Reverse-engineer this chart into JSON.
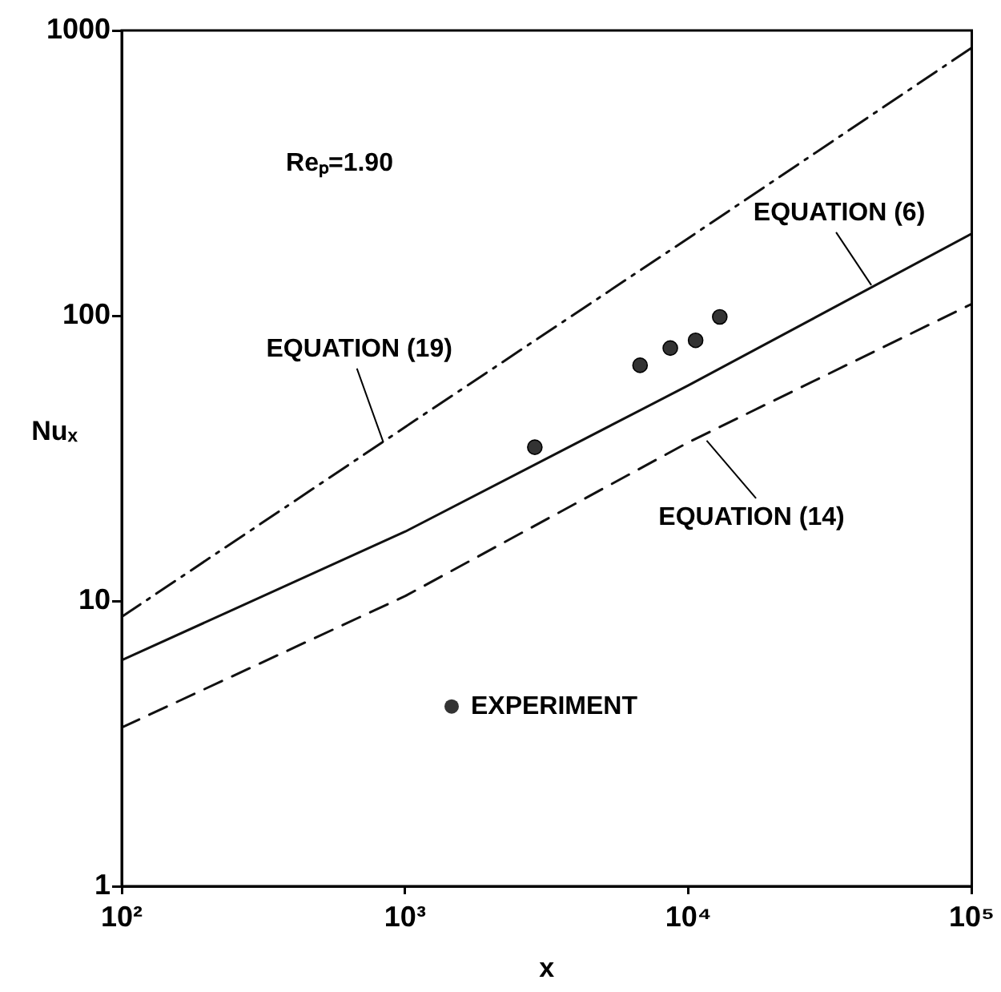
{
  "chart_data": {
    "type": "line",
    "xlabel": "x",
    "ylabel": "Nuₓ",
    "log": "xy",
    "xlim": [
      100,
      100000
    ],
    "ylim": [
      1,
      1000
    ],
    "xticks": [
      {
        "value": 100,
        "label": "10²"
      },
      {
        "value": 1000,
        "label": "10³"
      },
      {
        "value": 10000,
        "label": "10⁴"
      },
      {
        "value": 100000,
        "label": "10⁵"
      }
    ],
    "yticks": [
      1,
      10,
      100,
      1000
    ],
    "grid": false,
    "legend": "bottom",
    "series": [
      {
        "color": "#111111",
        "line_style": "dashdot",
        "marker": "none",
        "x": [
          100,
          1000,
          10000,
          100000
        ],
        "values": [
          8.8,
          40.7,
          187,
          870
        ]
      },
      {
        "color": "#111111",
        "line_style": "solid",
        "marker": "none",
        "x": [
          100,
          1000,
          10000,
          100000
        ],
        "values": [
          6.2,
          17.5,
          57,
          194
        ]
      },
      {
        "color": "#111111",
        "line_style": "dashed",
        "marker": "none",
        "x": [
          100,
          1000,
          10000,
          100000
        ],
        "values": [
          3.6,
          10.4,
          36,
          110
        ]
      },
      {
        "type": "scatter",
        "name": "EXPERIMENT",
        "color": "#333333",
        "marker": "circle",
        "x": [
          2870,
          6750,
          8630,
          10600,
          12900
        ],
        "values": [
          34.6,
          67,
          77,
          82,
          99
        ]
      }
    ],
    "annotations": [
      "Reₚ=1.90",
      {
        "text": "EQUATION (19)",
        "x": 838,
        "y": 36
      },
      {
        "text": "EQUATION (6)",
        "x": 44200,
        "y": 128
      },
      {
        "text": "EQUATION (14)",
        "x": 11600,
        "y": 36.5
      }
    ]
  }
}
